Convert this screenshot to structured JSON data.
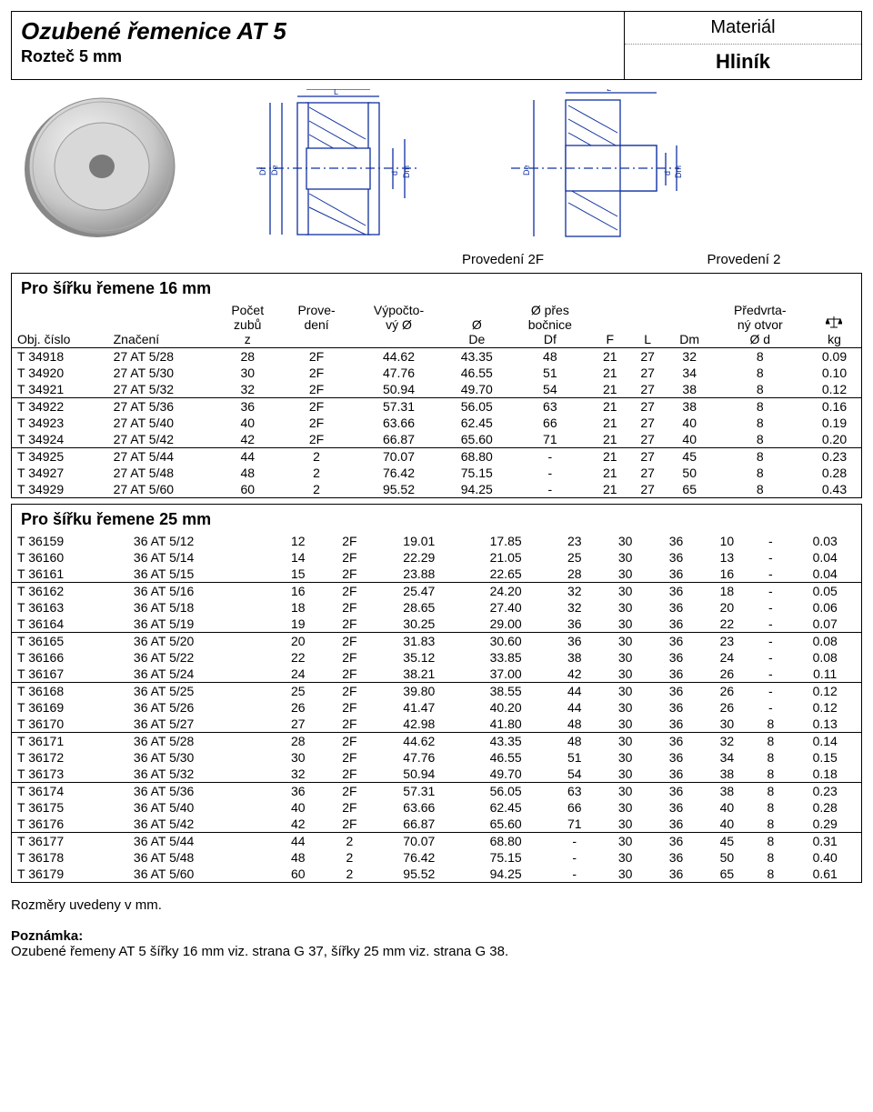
{
  "header": {
    "title": "Ozubené řemenice  AT 5",
    "subtitle": "Rozteč  5 mm",
    "material_label": "Materiál",
    "material_value": "Hliník"
  },
  "diagram_labels": {
    "left": "Provedení 2F",
    "right": "Provedení 2"
  },
  "columns": {
    "c0": "Obj. číslo",
    "c1": "Značení",
    "c2a": "Počet",
    "c2b": "zubů",
    "c2c": "z",
    "c3a": "Prove-",
    "c3b": "dení",
    "c4a": "Výpočto-",
    "c4b": "vý Ø",
    "c5a": "Ø",
    "c5b": "De",
    "c6a": "Ø přes",
    "c6b": "bočnice",
    "c6c": "Df",
    "c7": "F",
    "c8": "L",
    "c9": "Dm",
    "c10a": "Předvrta-",
    "c10b": "ný otvor",
    "c10c": "Ø d",
    "c11": "kg"
  },
  "section1": {
    "title": "Pro šířku řemene 16 mm",
    "rows": [
      [
        "T 34918",
        "27 AT 5/28",
        "28",
        "2F",
        "44.62",
        "43.35",
        "48",
        "21",
        "27",
        "32",
        "8",
        "0.09"
      ],
      [
        "T 34920",
        "27 AT 5/30",
        "30",
        "2F",
        "47.76",
        "46.55",
        "51",
        "21",
        "27",
        "34",
        "8",
        "0.10"
      ],
      [
        "T 34921",
        "27 AT 5/32",
        "32",
        "2F",
        "50.94",
        "49.70",
        "54",
        "21",
        "27",
        "38",
        "8",
        "0.12"
      ],
      [
        "T 34922",
        "27 AT 5/36",
        "36",
        "2F",
        "57.31",
        "56.05",
        "63",
        "21",
        "27",
        "38",
        "8",
        "0.16"
      ],
      [
        "T 34923",
        "27 AT 5/40",
        "40",
        "2F",
        "63.66",
        "62.45",
        "66",
        "21",
        "27",
        "40",
        "8",
        "0.19"
      ],
      [
        "T 34924",
        "27 AT 5/42",
        "42",
        "2F",
        "66.87",
        "65.60",
        "71",
        "21",
        "27",
        "40",
        "8",
        "0.20"
      ],
      [
        "T 34925",
        "27 AT 5/44",
        "44",
        "2",
        "70.07",
        "68.80",
        "-",
        "21",
        "27",
        "45",
        "8",
        "0.23"
      ],
      [
        "T 34927",
        "27 AT 5/48",
        "48",
        "2",
        "76.42",
        "75.15",
        "-",
        "21",
        "27",
        "50",
        "8",
        "0.28"
      ],
      [
        "T 34929",
        "27 AT 5/60",
        "60",
        "2",
        "95.52",
        "94.25",
        "-",
        "21",
        "27",
        "65",
        "8",
        "0.43"
      ]
    ],
    "separators": [
      3,
      6
    ]
  },
  "section2": {
    "title": "Pro šířku řemene 25 mm",
    "rows": [
      [
        "T 36159",
        "36 AT 5/12",
        "12",
        "2F",
        "19.01",
        "17.85",
        "23",
        "30",
        "36",
        "10",
        "-",
        "0.03"
      ],
      [
        "T 36160",
        "36 AT 5/14",
        "14",
        "2F",
        "22.29",
        "21.05",
        "25",
        "30",
        "36",
        "13",
        "-",
        "0.04"
      ],
      [
        "T 36161",
        "36 AT 5/15",
        "15",
        "2F",
        "23.88",
        "22.65",
        "28",
        "30",
        "36",
        "16",
        "-",
        "0.04"
      ],
      [
        "T 36162",
        "36 AT 5/16",
        "16",
        "2F",
        "25.47",
        "24.20",
        "32",
        "30",
        "36",
        "18",
        "-",
        "0.05"
      ],
      [
        "T 36163",
        "36 AT 5/18",
        "18",
        "2F",
        "28.65",
        "27.40",
        "32",
        "30",
        "36",
        "20",
        "-",
        "0.06"
      ],
      [
        "T 36164",
        "36 AT 5/19",
        "19",
        "2F",
        "30.25",
        "29.00",
        "36",
        "30",
        "36",
        "22",
        "-",
        "0.07"
      ],
      [
        "T 36165",
        "36 AT 5/20",
        "20",
        "2F",
        "31.83",
        "30.60",
        "36",
        "30",
        "36",
        "23",
        "-",
        "0.08"
      ],
      [
        "T 36166",
        "36 AT 5/22",
        "22",
        "2F",
        "35.12",
        "33.85",
        "38",
        "30",
        "36",
        "24",
        "-",
        "0.08"
      ],
      [
        "T 36167",
        "36 AT 5/24",
        "24",
        "2F",
        "38.21",
        "37.00",
        "42",
        "30",
        "36",
        "26",
        "-",
        "0.11"
      ],
      [
        "T 36168",
        "36 AT 5/25",
        "25",
        "2F",
        "39.80",
        "38.55",
        "44",
        "30",
        "36",
        "26",
        "-",
        "0.12"
      ],
      [
        "T 36169",
        "36 AT 5/26",
        "26",
        "2F",
        "41.47",
        "40.20",
        "44",
        "30",
        "36",
        "26",
        "-",
        "0.12"
      ],
      [
        "T 36170",
        "36 AT 5/27",
        "27",
        "2F",
        "42.98",
        "41.80",
        "48",
        "30",
        "36",
        "30",
        "8",
        "0.13"
      ],
      [
        "T 36171",
        "36 AT 5/28",
        "28",
        "2F",
        "44.62",
        "43.35",
        "48",
        "30",
        "36",
        "32",
        "8",
        "0.14"
      ],
      [
        "T 36172",
        "36 AT 5/30",
        "30",
        "2F",
        "47.76",
        "46.55",
        "51",
        "30",
        "36",
        "34",
        "8",
        "0.15"
      ],
      [
        "T 36173",
        "36 AT 5/32",
        "32",
        "2F",
        "50.94",
        "49.70",
        "54",
        "30",
        "36",
        "38",
        "8",
        "0.18"
      ],
      [
        "T 36174",
        "36 AT 5/36",
        "36",
        "2F",
        "57.31",
        "56.05",
        "63",
        "30",
        "36",
        "38",
        "8",
        "0.23"
      ],
      [
        "T 36175",
        "36 AT 5/40",
        "40",
        "2F",
        "63.66",
        "62.45",
        "66",
        "30",
        "36",
        "40",
        "8",
        "0.28"
      ],
      [
        "T 36176",
        "36 AT 5/42",
        "42",
        "2F",
        "66.87",
        "65.60",
        "71",
        "30",
        "36",
        "40",
        "8",
        "0.29"
      ],
      [
        "T 36177",
        "36 AT 5/44",
        "44",
        "2",
        "70.07",
        "68.80",
        "-",
        "30",
        "36",
        "45",
        "8",
        "0.31"
      ],
      [
        "T 36178",
        "36 AT 5/48",
        "48",
        "2",
        "76.42",
        "75.15",
        "-",
        "30",
        "36",
        "50",
        "8",
        "0.40"
      ],
      [
        "T 36179",
        "36 AT 5/60",
        "60",
        "2",
        "95.52",
        "94.25",
        "-",
        "30",
        "36",
        "65",
        "8",
        "0.61"
      ]
    ],
    "separators": [
      3,
      6,
      9,
      12,
      15,
      18
    ]
  },
  "footer": {
    "dims_note": "Rozměry uvedeny v mm.",
    "note_label": "Poznámka:",
    "note_text": "Ozubené řemeny AT 5 šířky 16 mm viz. strana G 37, šířky 25 mm viz. strana G 38."
  }
}
